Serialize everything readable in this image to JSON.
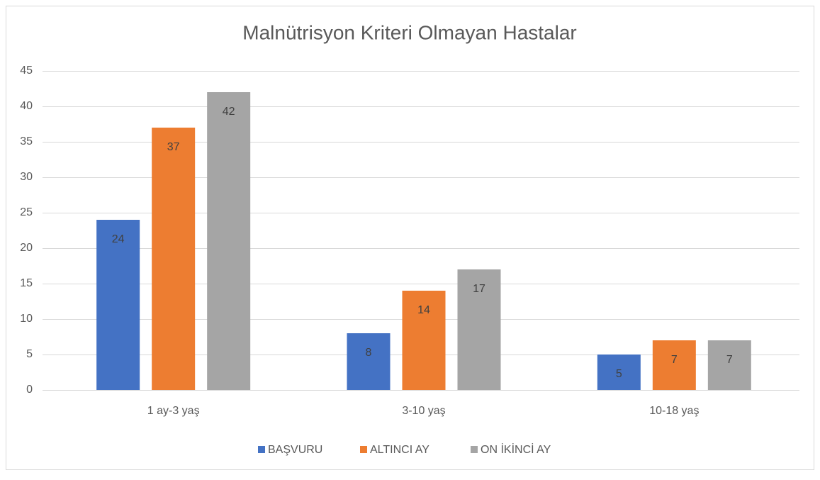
{
  "chart_data": {
    "type": "bar",
    "title": "Malnütrisyon Kriteri Olmayan Hastalar",
    "categories": [
      "1 ay-3 yaş",
      "3-10 yaş",
      "10-18 yaş"
    ],
    "series": [
      {
        "name": "BAŞVURU",
        "color": "#4472c4",
        "values": [
          24,
          8,
          5
        ]
      },
      {
        "name": "ALTINCI AY",
        "color": "#ed7d31",
        "values": [
          37,
          14,
          7
        ]
      },
      {
        "name": "ON İKİNCİ AY",
        "color": "#a5a5a5",
        "values": [
          42,
          17,
          7
        ]
      }
    ],
    "ylim": [
      0,
      45
    ],
    "yticks": [
      0,
      5,
      10,
      15,
      20,
      25,
      30,
      35,
      40,
      45
    ],
    "grid": true,
    "legend": "bottom"
  }
}
